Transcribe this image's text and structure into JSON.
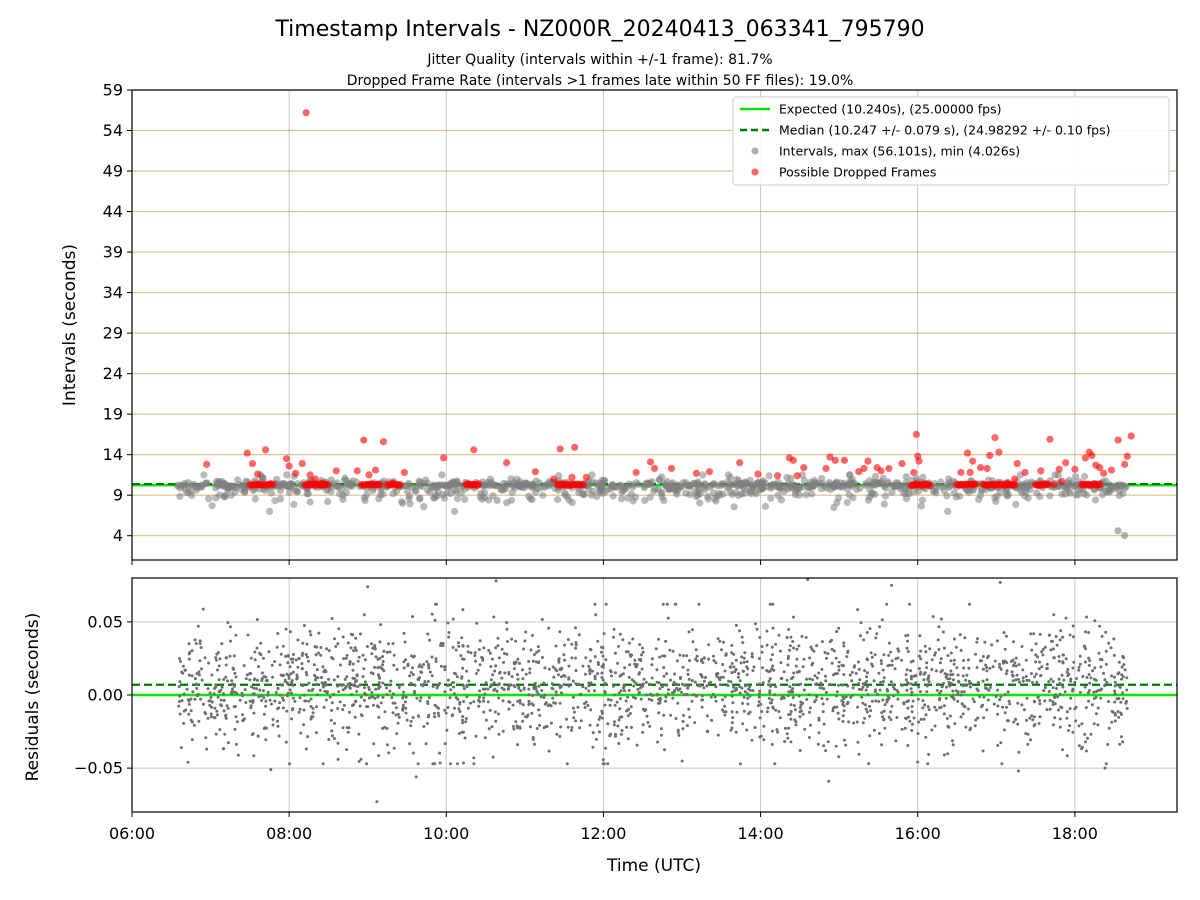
{
  "figure": {
    "title": "Timestamp Intervals - NZ000R_20240413_063341_795790",
    "subtitle_1": "Jitter Quality (intervals within +/-1 frame): 81.7%",
    "subtitle_2": "Dropped Frame Rate (intervals >1 frames late within 50 FF files): 19.0%"
  },
  "chart_data": [
    {
      "id": "intervals",
      "type": "scatter",
      "title": "",
      "xlabel": "",
      "ylabel": "Intervals (seconds)",
      "xlim": [
        "06:00",
        "19:18"
      ],
      "ylim": [
        1,
        59
      ],
      "yticks": [
        "4",
        "9",
        "14",
        "19",
        "24",
        "29",
        "34",
        "39",
        "44",
        "49",
        "54",
        "59"
      ],
      "grid": true,
      "legend_position": "top-right",
      "legend": [
        {
          "label": "Expected (10.240s), (25.00000 fps)",
          "style": "solid-line",
          "color": "#00e600"
        },
        {
          "label": "Median (10.247 +/- 0.079 s), (24.98292 +/- 0.10 fps)",
          "style": "dashed-line",
          "color": "#007a00"
        },
        {
          "label": "Intervals, max (56.101s), min (4.026s)",
          "style": "marker",
          "color": "#808080"
        },
        {
          "label": "Possible Dropped Frames",
          "style": "marker",
          "color": "#ff0000"
        }
      ],
      "reference_lines": {
        "expected": 10.24,
        "median": 10.247
      },
      "series": [
        {
          "name": "Intervals, max (56.101s), min (4.026s)",
          "color": "#808080",
          "x_range": [
            "06:35",
            "18:40"
          ],
          "typical_range": [
            7,
            11.5
          ],
          "min": 4.026,
          "max": 56.101
        },
        {
          "name": "Possible Dropped Frames",
          "color": "#ff0000",
          "points": [
            [
              "06:57",
              12.8
            ],
            [
              "07:28",
              14.2
            ],
            [
              "07:32",
              12.9
            ],
            [
              "07:36",
              11.6
            ],
            [
              "07:42",
              14.6
            ],
            [
              "07:58",
              13.5
            ],
            [
              "08:00",
              12.6
            ],
            [
              "08:05",
              11.7
            ],
            [
              "08:13",
              56.2
            ],
            [
              "08:10",
              12.9
            ],
            [
              "08:16",
              11.5
            ],
            [
              "08:20",
              11.0
            ],
            [
              "08:25",
              10.5
            ],
            [
              "08:36",
              12.0
            ],
            [
              "08:52",
              12.0
            ],
            [
              "08:57",
              15.8
            ],
            [
              "09:01",
              11.5
            ],
            [
              "09:06",
              12.1
            ],
            [
              "09:12",
              15.6
            ],
            [
              "09:19",
              10.5
            ],
            [
              "09:28",
              11.8
            ],
            [
              "09:58",
              13.6
            ],
            [
              "10:21",
              14.6
            ],
            [
              "10:46",
              13.0
            ],
            [
              "11:08",
              11.9
            ],
            [
              "11:22",
              11.0
            ],
            [
              "11:27",
              14.7
            ],
            [
              "11:36",
              11.2
            ],
            [
              "11:38",
              14.9
            ],
            [
              "11:47",
              11.2
            ],
            [
              "12:25",
              11.8
            ],
            [
              "12:36",
              13.1
            ],
            [
              "12:39",
              12.3
            ],
            [
              "12:52",
              12.3
            ],
            [
              "13:11",
              11.7
            ],
            [
              "13:21",
              11.9
            ],
            [
              "13:44",
              13.0
            ],
            [
              "13:58",
              11.6
            ],
            [
              "14:13",
              11.4
            ],
            [
              "14:22",
              13.6
            ],
            [
              "14:25",
              13.3
            ],
            [
              "14:28",
              11.4
            ],
            [
              "14:33",
              12.4
            ],
            [
              "14:50",
              12.3
            ],
            [
              "14:53",
              13.7
            ],
            [
              "14:57",
              13.3
            ],
            [
              "15:04",
              13.3
            ],
            [
              "15:15",
              11.9
            ],
            [
              "15:19",
              12.3
            ],
            [
              "15:22",
              13.2
            ],
            [
              "15:29",
              12.4
            ],
            [
              "15:32",
              12.0
            ],
            [
              "15:38",
              12.3
            ],
            [
              "15:48",
              12.9
            ],
            [
              "15:57",
              11.8
            ],
            [
              "15:59",
              16.5
            ],
            [
              "16:00",
              13.8
            ],
            [
              "16:01",
              13.2
            ],
            [
              "16:33",
              11.8
            ],
            [
              "16:38",
              14.2
            ],
            [
              "16:40",
              11.8
            ],
            [
              "16:42",
              13.2
            ],
            [
              "16:48",
              12.4
            ],
            [
              "16:53",
              12.3
            ],
            [
              "16:55",
              13.9
            ],
            [
              "16:59",
              16.1
            ],
            [
              "17:02",
              14.3
            ],
            [
              "17:08",
              10.5
            ],
            [
              "17:14",
              11.0
            ],
            [
              "17:16",
              12.9
            ],
            [
              "17:22",
              11.8
            ],
            [
              "17:34",
              12.0
            ],
            [
              "17:41",
              15.9
            ],
            [
              "17:44",
              10.3
            ],
            [
              "17:48",
              12.2
            ],
            [
              "17:50",
              10.7
            ],
            [
              "17:53",
              13.0
            ],
            [
              "18:00",
              12.2
            ],
            [
              "18:08",
              13.6
            ],
            [
              "18:11",
              14.3
            ],
            [
              "18:13",
              13.9
            ],
            [
              "18:16",
              12.7
            ],
            [
              "18:19",
              12.4
            ],
            [
              "18:22",
              11.7
            ],
            [
              "18:28",
              12.1
            ],
            [
              "18:33",
              15.8
            ],
            [
              "18:38",
              12.8
            ],
            [
              "18:40",
              13.8
            ],
            [
              "18:43",
              16.3
            ]
          ]
        }
      ]
    },
    {
      "id": "residuals",
      "type": "scatter",
      "title": "",
      "xlabel": "Time (UTC)",
      "ylabel": "Residuals (seconds)",
      "xlim": [
        "06:00",
        "19:18"
      ],
      "ylim": [
        -0.08,
        0.08
      ],
      "xticks": [
        "06:00",
        "08:00",
        "10:00",
        "12:00",
        "14:00",
        "16:00",
        "18:00"
      ],
      "yticks": [
        "0.05",
        "0.00",
        "−0.05"
      ],
      "grid": true,
      "reference_lines": {
        "expected": 0.0,
        "median": 0.007
      },
      "series": [
        {
          "name": "",
          "color": "#6e6e6e",
          "x_range": [
            "06:35",
            "18:40"
          ],
          "typical_range": [
            -0.035,
            0.05
          ],
          "outliers": [
            [
              "07:46",
              -0.051
            ],
            [
              "09:00",
              0.074
            ],
            [
              "09:07",
              -0.073
            ],
            [
              "09:37",
              -0.056
            ],
            [
              "10:21",
              -0.043
            ],
            [
              "10:38",
              0.078
            ],
            [
              "14:36",
              0.079
            ],
            [
              "14:52",
              -0.059
            ],
            [
              "15:40",
              0.075
            ],
            [
              "17:03",
              0.077
            ],
            [
              "17:17",
              -0.052
            ],
            [
              "18:23",
              -0.05
            ]
          ]
        }
      ]
    }
  ]
}
